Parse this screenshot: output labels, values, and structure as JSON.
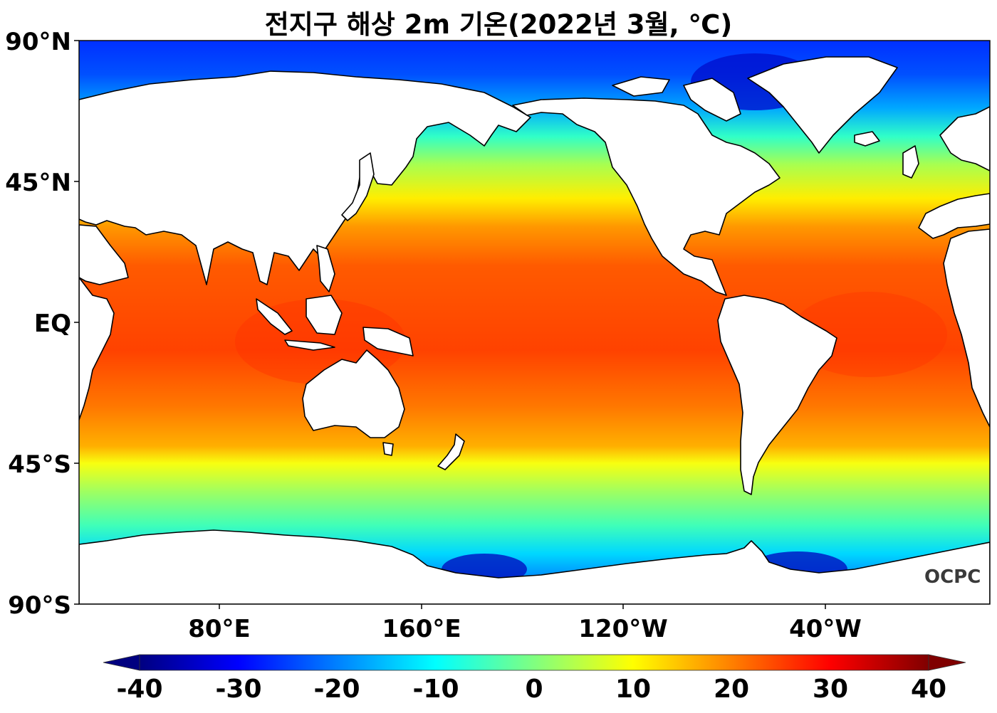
{
  "title": "전지구 해상 2m 기온(2022년 3월, ℃)",
  "logo_text": "OCPC",
  "map": {
    "lat_ticks": [
      "90°N",
      "45°N",
      "EQ",
      "45°S",
      "90°S"
    ],
    "lon_ticks": [
      "80°E",
      "160°E",
      "120°W",
      "40°W"
    ],
    "land_color": "#ffffff",
    "coast_color": "#000000"
  },
  "colorbar": {
    "ticks": [
      "-40",
      "-30",
      "-20",
      "-10",
      "0",
      "10",
      "20",
      "30",
      "40"
    ],
    "range": [
      -40,
      40
    ],
    "colormap": "jet",
    "extend": "both"
  }
}
